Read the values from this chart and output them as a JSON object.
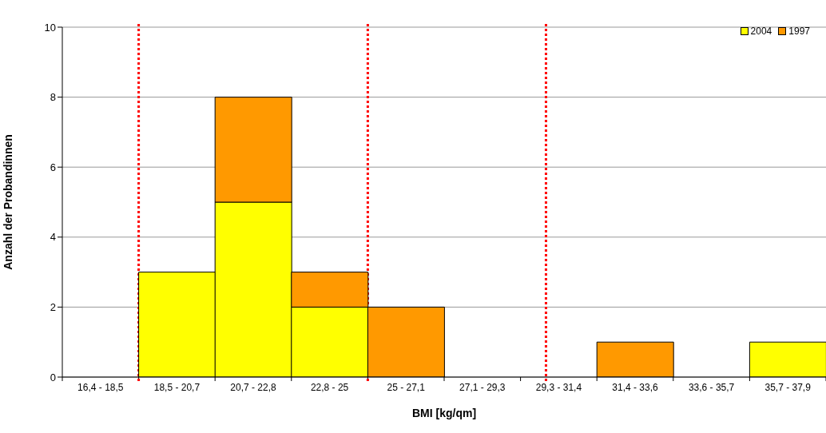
{
  "chart_data": {
    "type": "bar",
    "stacked": true,
    "xlabel": "BMI [kg/qm]",
    "ylabel": "Anzahl der Probandinnen",
    "categories": [
      "16,4 - 18,5",
      "18,5 - 20,7",
      "20,7 - 22,8",
      "22,8 - 25",
      "25 - 27,1",
      "27,1 - 29,3",
      "29,3 - 31,4",
      "31,4 - 33,6",
      "33,6 - 35,7",
      "35,7 - 37,9"
    ],
    "series": [
      {
        "name": "2004",
        "color": "#ffff00",
        "values": [
          0,
          3,
          5,
          2,
          0,
          0,
          0,
          0,
          0,
          1
        ]
      },
      {
        "name": "1997",
        "color": "#ff9900",
        "values": [
          0,
          0,
          3,
          1,
          2,
          0,
          0,
          1,
          0,
          0
        ]
      }
    ],
    "ylim": [
      0,
      10
    ],
    "yticks": [
      0,
      2,
      4,
      6,
      8,
      10
    ],
    "grid": "y",
    "legend": "top right"
  }
}
